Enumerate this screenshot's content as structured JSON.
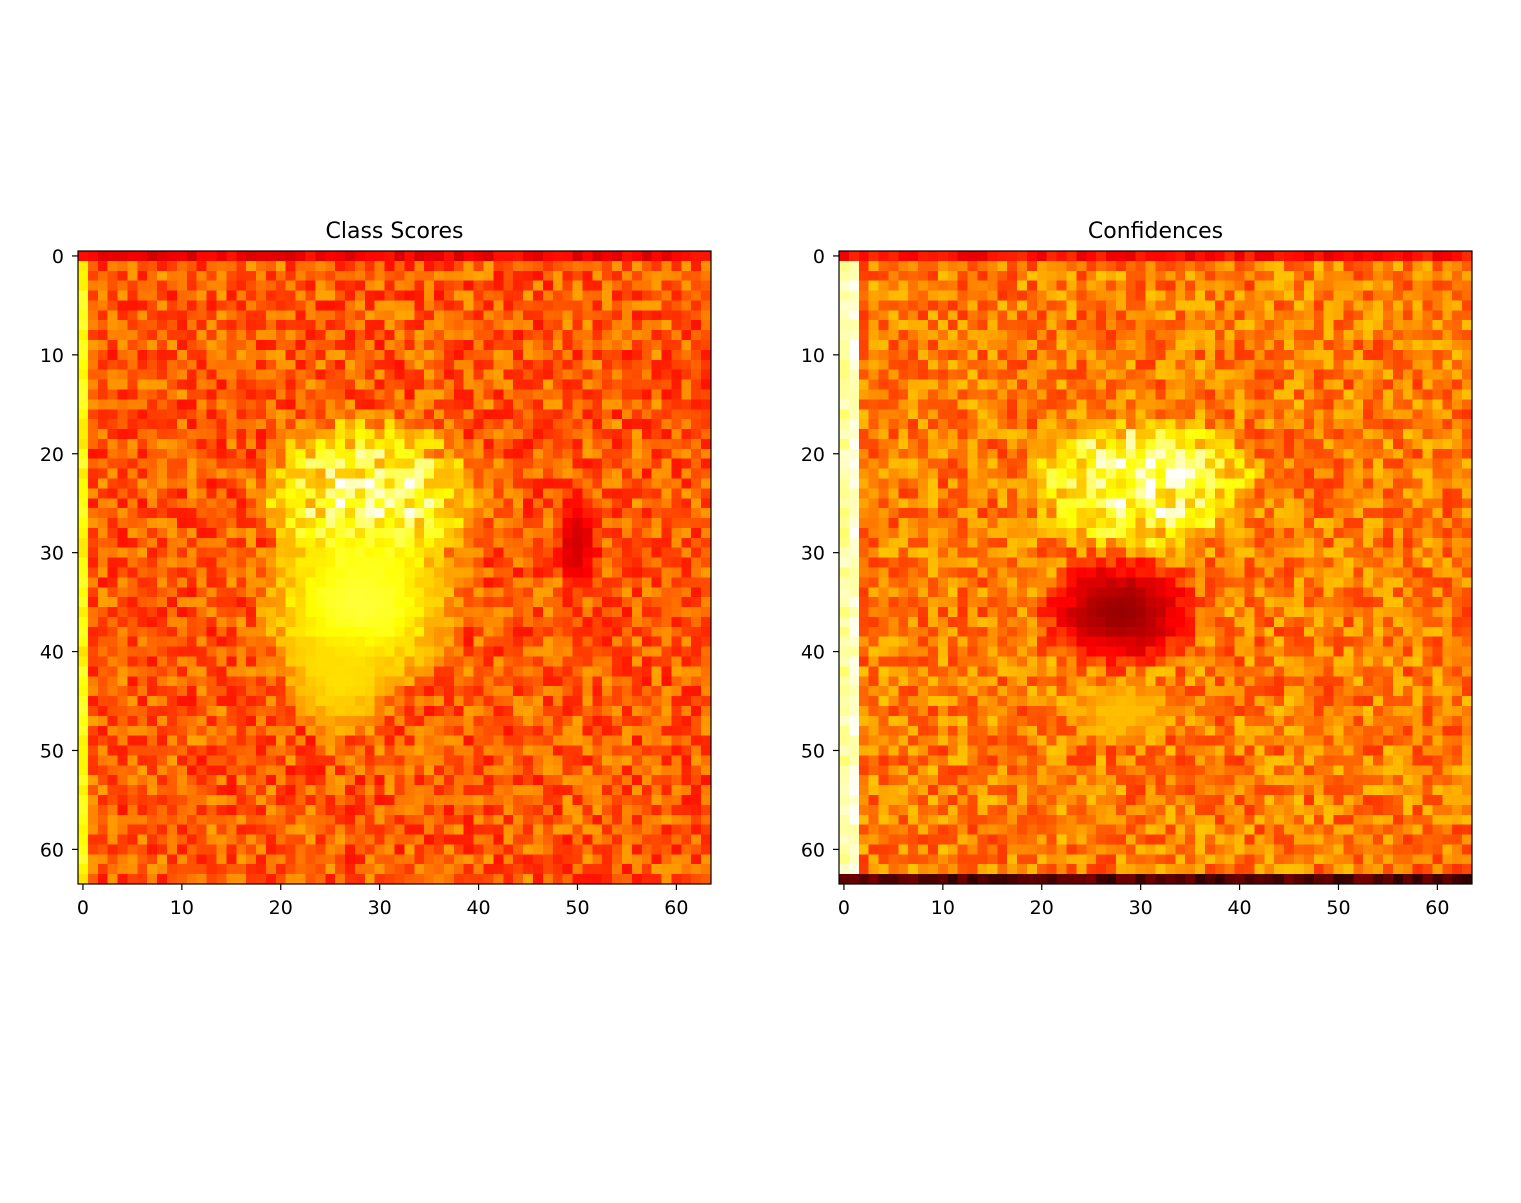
{
  "chart_data": [
    {
      "type": "heatmap",
      "title": "Class Scores",
      "xlabel": "",
      "ylabel": "",
      "grid_size": [
        64,
        64
      ],
      "colormap": "hot",
      "xlim": [
        -0.5,
        63.5
      ],
      "ylim": [
        63.5,
        -0.5
      ],
      "xticks": [
        0,
        10,
        20,
        30,
        40,
        50,
        60
      ],
      "yticks": [
        0,
        10,
        20,
        30,
        40,
        50,
        60
      ],
      "xtick_labels": [
        "0",
        "10",
        "20",
        "30",
        "40",
        "50",
        "60"
      ],
      "ytick_labels": [
        "0",
        "10",
        "20",
        "30",
        "40",
        "50",
        "60"
      ],
      "grid": false,
      "background_level": 0.5,
      "regions": [
        {
          "shape": "blob",
          "center": [
            29,
            24
          ],
          "radius": [
            10,
            7
          ],
          "level": 0.85,
          "speckle": true
        },
        {
          "shape": "blob",
          "center": [
            28,
            35
          ],
          "radius": [
            9,
            8
          ],
          "level": 0.8
        },
        {
          "shape": "blob",
          "center": [
            26,
            43
          ],
          "radius": [
            5,
            5
          ],
          "level": 0.7
        },
        {
          "shape": "blob",
          "center": [
            50,
            29
          ],
          "radius": [
            2,
            5
          ],
          "level": 0.3
        },
        {
          "shape": "column",
          "x": 0,
          "level": 0.75
        },
        {
          "shape": "row",
          "y": 0,
          "level": 0.35
        }
      ]
    },
    {
      "type": "heatmap",
      "title": "Confidences",
      "xlabel": "",
      "ylabel": "",
      "grid_size": [
        64,
        64
      ],
      "colormap": "hot",
      "xlim": [
        -0.5,
        63.5
      ],
      "ylim": [
        63.5,
        -0.5
      ],
      "xticks": [
        0,
        10,
        20,
        30,
        40,
        50,
        60
      ],
      "yticks": [
        0,
        10,
        20,
        30,
        40,
        50,
        60
      ],
      "xtick_labels": [
        "0",
        "10",
        "20",
        "30",
        "40",
        "50",
        "60"
      ],
      "ytick_labels": [
        "0",
        "10",
        "20",
        "30",
        "40",
        "50",
        "60"
      ],
      "grid": false,
      "background_level": 0.55,
      "regions": [
        {
          "shape": "blob",
          "center": [
            30,
            23
          ],
          "radius": [
            10,
            6
          ],
          "level": 0.88,
          "speckle": true
        },
        {
          "shape": "blob",
          "center": [
            28,
            36
          ],
          "radius": [
            7,
            5
          ],
          "level": 0.22
        },
        {
          "shape": "blob",
          "center": [
            28,
            46
          ],
          "radius": [
            5,
            3
          ],
          "level": 0.65
        },
        {
          "shape": "column",
          "x": 0,
          "level": 0.9
        },
        {
          "shape": "column",
          "x": 1,
          "level": 0.95
        },
        {
          "shape": "row",
          "y": 63,
          "level": 0.12
        },
        {
          "shape": "row",
          "y": 0,
          "level": 0.38
        }
      ]
    }
  ]
}
